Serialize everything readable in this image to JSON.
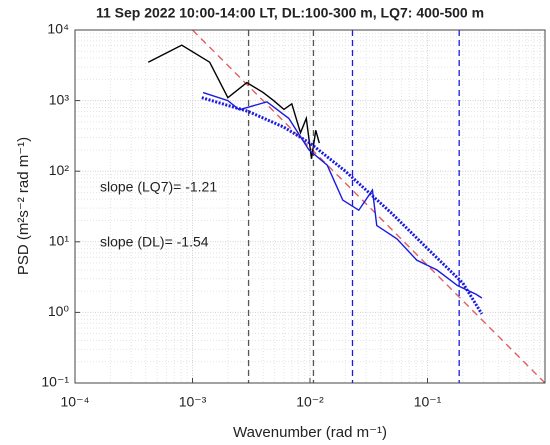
{
  "chart_data": {
    "type": "line",
    "title": "11 Sep 2022 10:00-14:00 LT, DL:100-300 m, LQ7: 400-500 m",
    "xlabel": "Wavenumber (rad m⁻¹)",
    "ylabel": "PSD (m²s⁻² rad m⁻¹)",
    "log_x": true,
    "log_y": true,
    "grid": true,
    "minor_grid": true,
    "xlim": [
      0.0001,
      1
    ],
    "ylim": [
      0.1,
      10000
    ],
    "xticks": [
      {
        "value": 0.0001,
        "label": "10⁻⁴"
      },
      {
        "value": 0.001,
        "label": "10⁻³"
      },
      {
        "value": 0.01,
        "label": "10⁻²"
      },
      {
        "value": 0.1,
        "label": "10⁻¹"
      }
    ],
    "yticks": [
      {
        "value": 0.1,
        "label": "10⁻¹"
      },
      {
        "value": 1,
        "label": "10⁰"
      },
      {
        "value": 10,
        "label": "10¹"
      },
      {
        "value": 100,
        "label": "10²"
      },
      {
        "value": 1000,
        "label": "10³"
      },
      {
        "value": 10000,
        "label": "10⁴"
      }
    ],
    "series": [
      {
        "color": "#e06060",
        "style": "dashed",
        "x": [
          0.001,
          1
        ],
        "y": [
          10000,
          0.1
        ]
      },
      {
        "color": "#000000",
        "style": "solid",
        "x": [
          0.00042,
          0.00081,
          0.0014,
          0.002,
          0.0029,
          0.004,
          0.0049,
          0.006,
          0.007,
          0.0083,
          0.0093,
          0.0103,
          0.0112,
          0.012
        ],
        "y": [
          3500,
          6100,
          3500,
          1100,
          1800,
          1300,
          1000,
          750,
          900,
          350,
          560,
          150,
          380,
          250
        ]
      },
      {
        "color": "#1a1ae0",
        "style": "solid",
        "x": [
          0.00123,
          0.002,
          0.0025,
          0.0043,
          0.0066,
          0.0098,
          0.014,
          0.019,
          0.026,
          0.034,
          0.037,
          0.055,
          0.081,
          0.12,
          0.18,
          0.26,
          0.29
        ],
        "y": [
          1300,
          1000,
          740,
          960,
          560,
          200,
          122,
          39,
          28,
          54,
          17,
          11,
          5.5,
          4,
          2.4,
          1.8,
          1.6
        ]
      },
      {
        "color": "#1a1ae0",
        "style": "dotted",
        "x": [
          0.0012,
          0.003,
          0.006,
          0.01,
          0.02,
          0.05,
          0.1,
          0.2,
          0.29
        ],
        "y": [
          1100,
          700,
          420,
          250,
          100,
          25,
          8,
          2.6,
          0.95
        ]
      }
    ],
    "vlines": [
      {
        "x": 0.003,
        "color": "#555555"
      },
      {
        "x": 0.0107,
        "color": "#555555"
      },
      {
        "x": 0.023,
        "color": "#1a1ae0"
      },
      {
        "x": 0.186,
        "color": "#1a1ae0"
      }
    ],
    "annotations": [
      {
        "text": "slope (LQ7)= -1.21",
        "color": "#000000"
      },
      {
        "text": "slope (DL)= -1.54",
        "color": "#1a1ae0"
      }
    ]
  }
}
